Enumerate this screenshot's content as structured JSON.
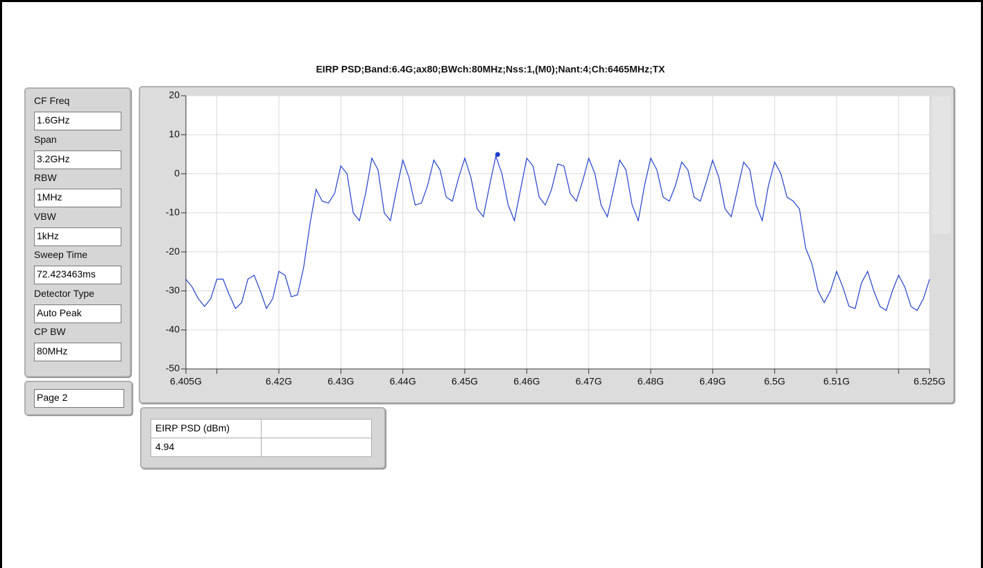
{
  "settings": [
    {
      "label": "CF Freq",
      "value": "1.6GHz"
    },
    {
      "label": "Span",
      "value": "3.2GHz"
    },
    {
      "label": "RBW",
      "value": "1MHz"
    },
    {
      "label": "VBW",
      "value": "1kHz"
    },
    {
      "label": "Sweep Time",
      "value": "72.423463ms"
    },
    {
      "label": "Detector Type",
      "value": "Auto Peak"
    },
    {
      "label": "CP BW",
      "value": "80MHz"
    }
  ],
  "page": "Page 2",
  "marker_table": {
    "header": "EIRP PSD (dBm)",
    "value": 4.94
  },
  "chart_data": {
    "type": "line",
    "title": "EIRP PSD;Band:6.4G;ax80;BWch:80MHz;Nss:1,(M0);Nant:4;Ch:6465MHz;TX",
    "xlim": [
      6.405,
      6.525
    ],
    "ylim": [
      -50,
      20
    ],
    "yticks": [
      20,
      10,
      0,
      -10,
      -20,
      -30,
      -40,
      -50
    ],
    "xticks": [
      {
        "value": 6.405,
        "label": "6.405G"
      },
      {
        "value": 6.42,
        "label": "6.42G"
      },
      {
        "value": 6.43,
        "label": "6.43G"
      },
      {
        "value": 6.44,
        "label": "6.44G"
      },
      {
        "value": 6.45,
        "label": "6.45G"
      },
      {
        "value": 6.46,
        "label": "6.46G"
      },
      {
        "value": 6.47,
        "label": "6.47G"
      },
      {
        "value": 6.48,
        "label": "6.48G"
      },
      {
        "value": 6.49,
        "label": "6.49G"
      },
      {
        "value": 6.5,
        "label": "6.5G"
      },
      {
        "value": 6.51,
        "label": "6.51G"
      },
      {
        "value": 6.525,
        "label": "6.525G"
      }
    ],
    "xminorticks": [
      6.41,
      6.52
    ],
    "grid": true,
    "marker_x": 6.4553,
    "x": [
      6.405,
      6.406,
      6.407,
      6.408,
      6.409,
      6.41,
      6.411,
      6.412,
      6.413,
      6.414,
      6.415,
      6.416,
      6.417,
      6.418,
      6.419,
      6.42,
      6.421,
      6.422,
      6.423,
      6.424,
      6.425,
      6.426,
      6.427,
      6.428,
      6.429,
      6.43,
      6.431,
      6.432,
      6.433,
      6.434,
      6.435,
      6.436,
      6.437,
      6.438,
      6.439,
      6.44,
      6.441,
      6.442,
      6.443,
      6.444,
      6.445,
      6.446,
      6.447,
      6.448,
      6.449,
      6.45,
      6.451,
      6.452,
      6.453,
      6.454,
      6.455,
      6.456,
      6.457,
      6.458,
      6.459,
      6.46,
      6.461,
      6.462,
      6.463,
      6.464,
      6.465,
      6.466,
      6.467,
      6.468,
      6.469,
      6.47,
      6.471,
      6.472,
      6.473,
      6.474,
      6.475,
      6.476,
      6.477,
      6.478,
      6.479,
      6.48,
      6.481,
      6.482,
      6.483,
      6.484,
      6.485,
      6.486,
      6.487,
      6.488,
      6.489,
      6.49,
      6.491,
      6.492,
      6.493,
      6.494,
      6.495,
      6.496,
      6.497,
      6.498,
      6.499,
      6.5,
      6.501,
      6.502,
      6.503,
      6.504,
      6.505,
      6.506,
      6.507,
      6.508,
      6.509,
      6.51,
      6.511,
      6.512,
      6.513,
      6.514,
      6.515,
      6.516,
      6.517,
      6.518,
      6.519,
      6.52,
      6.521,
      6.522,
      6.523,
      6.524,
      6.525
    ],
    "series": [
      {
        "name": "EIRP PSD",
        "color": "#1f3fd0",
        "values": [
          -27,
          -29,
          -32,
          -34,
          -32,
          -27,
          -27,
          -31,
          -34.5,
          -33,
          -27,
          -26,
          -30,
          -34.5,
          -32,
          -25,
          -26,
          -31.5,
          -31,
          -24,
          -13,
          -4,
          -7,
          -7.5,
          -5,
          2,
          0,
          -10,
          -12,
          -5,
          4,
          1,
          -10,
          -12,
          -4,
          3.5,
          -1,
          -8,
          -7.5,
          -3,
          3.5,
          1,
          -6,
          -7,
          -1,
          4,
          -1,
          -9,
          -11,
          -3,
          4.5,
          0,
          -8,
          -12,
          -4,
          4,
          2,
          -6,
          -8,
          -4,
          2.5,
          2,
          -5,
          -7,
          -2,
          4,
          0,
          -8,
          -11,
          -4,
          3.5,
          1,
          -8,
          -12,
          -3,
          4,
          1,
          -6,
          -7,
          -3,
          3,
          1,
          -6,
          -7,
          -2,
          3.5,
          -1,
          -9,
          -11,
          -4,
          3,
          1,
          -8,
          -12,
          -3,
          3,
          0,
          -6,
          -7,
          -9,
          -19,
          -23,
          -30,
          -33,
          -30,
          -25,
          -29,
          -34,
          -34.5,
          -28,
          -25,
          -30,
          -34,
          -35,
          -30,
          -26,
          -29,
          -34,
          -35,
          -32,
          -27
        ]
      }
    ]
  }
}
